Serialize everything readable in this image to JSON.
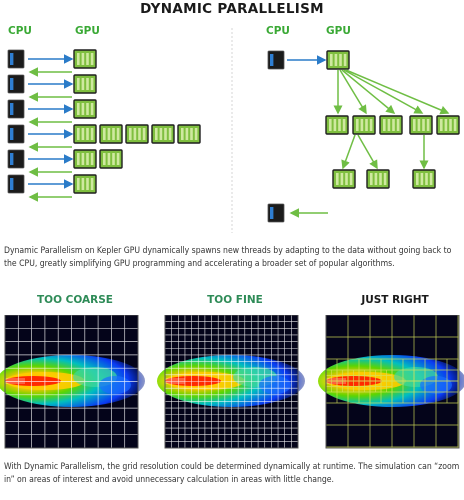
{
  "title": "DYNAMIC PARALLELISM",
  "left_panel": {
    "cpu_label": "CPU",
    "gpu_label": "GPU"
  },
  "right_panel": {
    "cpu_label": "CPU",
    "gpu_label": "GPU"
  },
  "caption_top": "Dynamic Parallelism on Kepler GPU dynamically spawns new threads by adapting to the data without going back to the CPU, greatly simplifying GPU programming and accelerating a broader set of popular algorithms.",
  "grids": [
    {
      "label": "TOO COARSE",
      "label_color": "#2e8b57"
    },
    {
      "label": "TOO FINE",
      "label_color": "#2e8b57"
    },
    {
      "label": "JUST RIGHT",
      "label_color": "#1a1a1a"
    }
  ],
  "caption_bottom": "With Dynamic Parallelism, the grid resolution could be determined dynamically at runtime. The simulation can “zoom in” on areas of interest and avoid unnecessary calculation in areas with little change.",
  "colors": {
    "label_green": "#3aa935",
    "block_green": "#8dc63f",
    "arrow_blue": "#2a7bc8",
    "arrow_green": "#6fbe44",
    "cpu_dark": "#1b1b1b",
    "cpu_bar": "#2f7fd3"
  }
}
